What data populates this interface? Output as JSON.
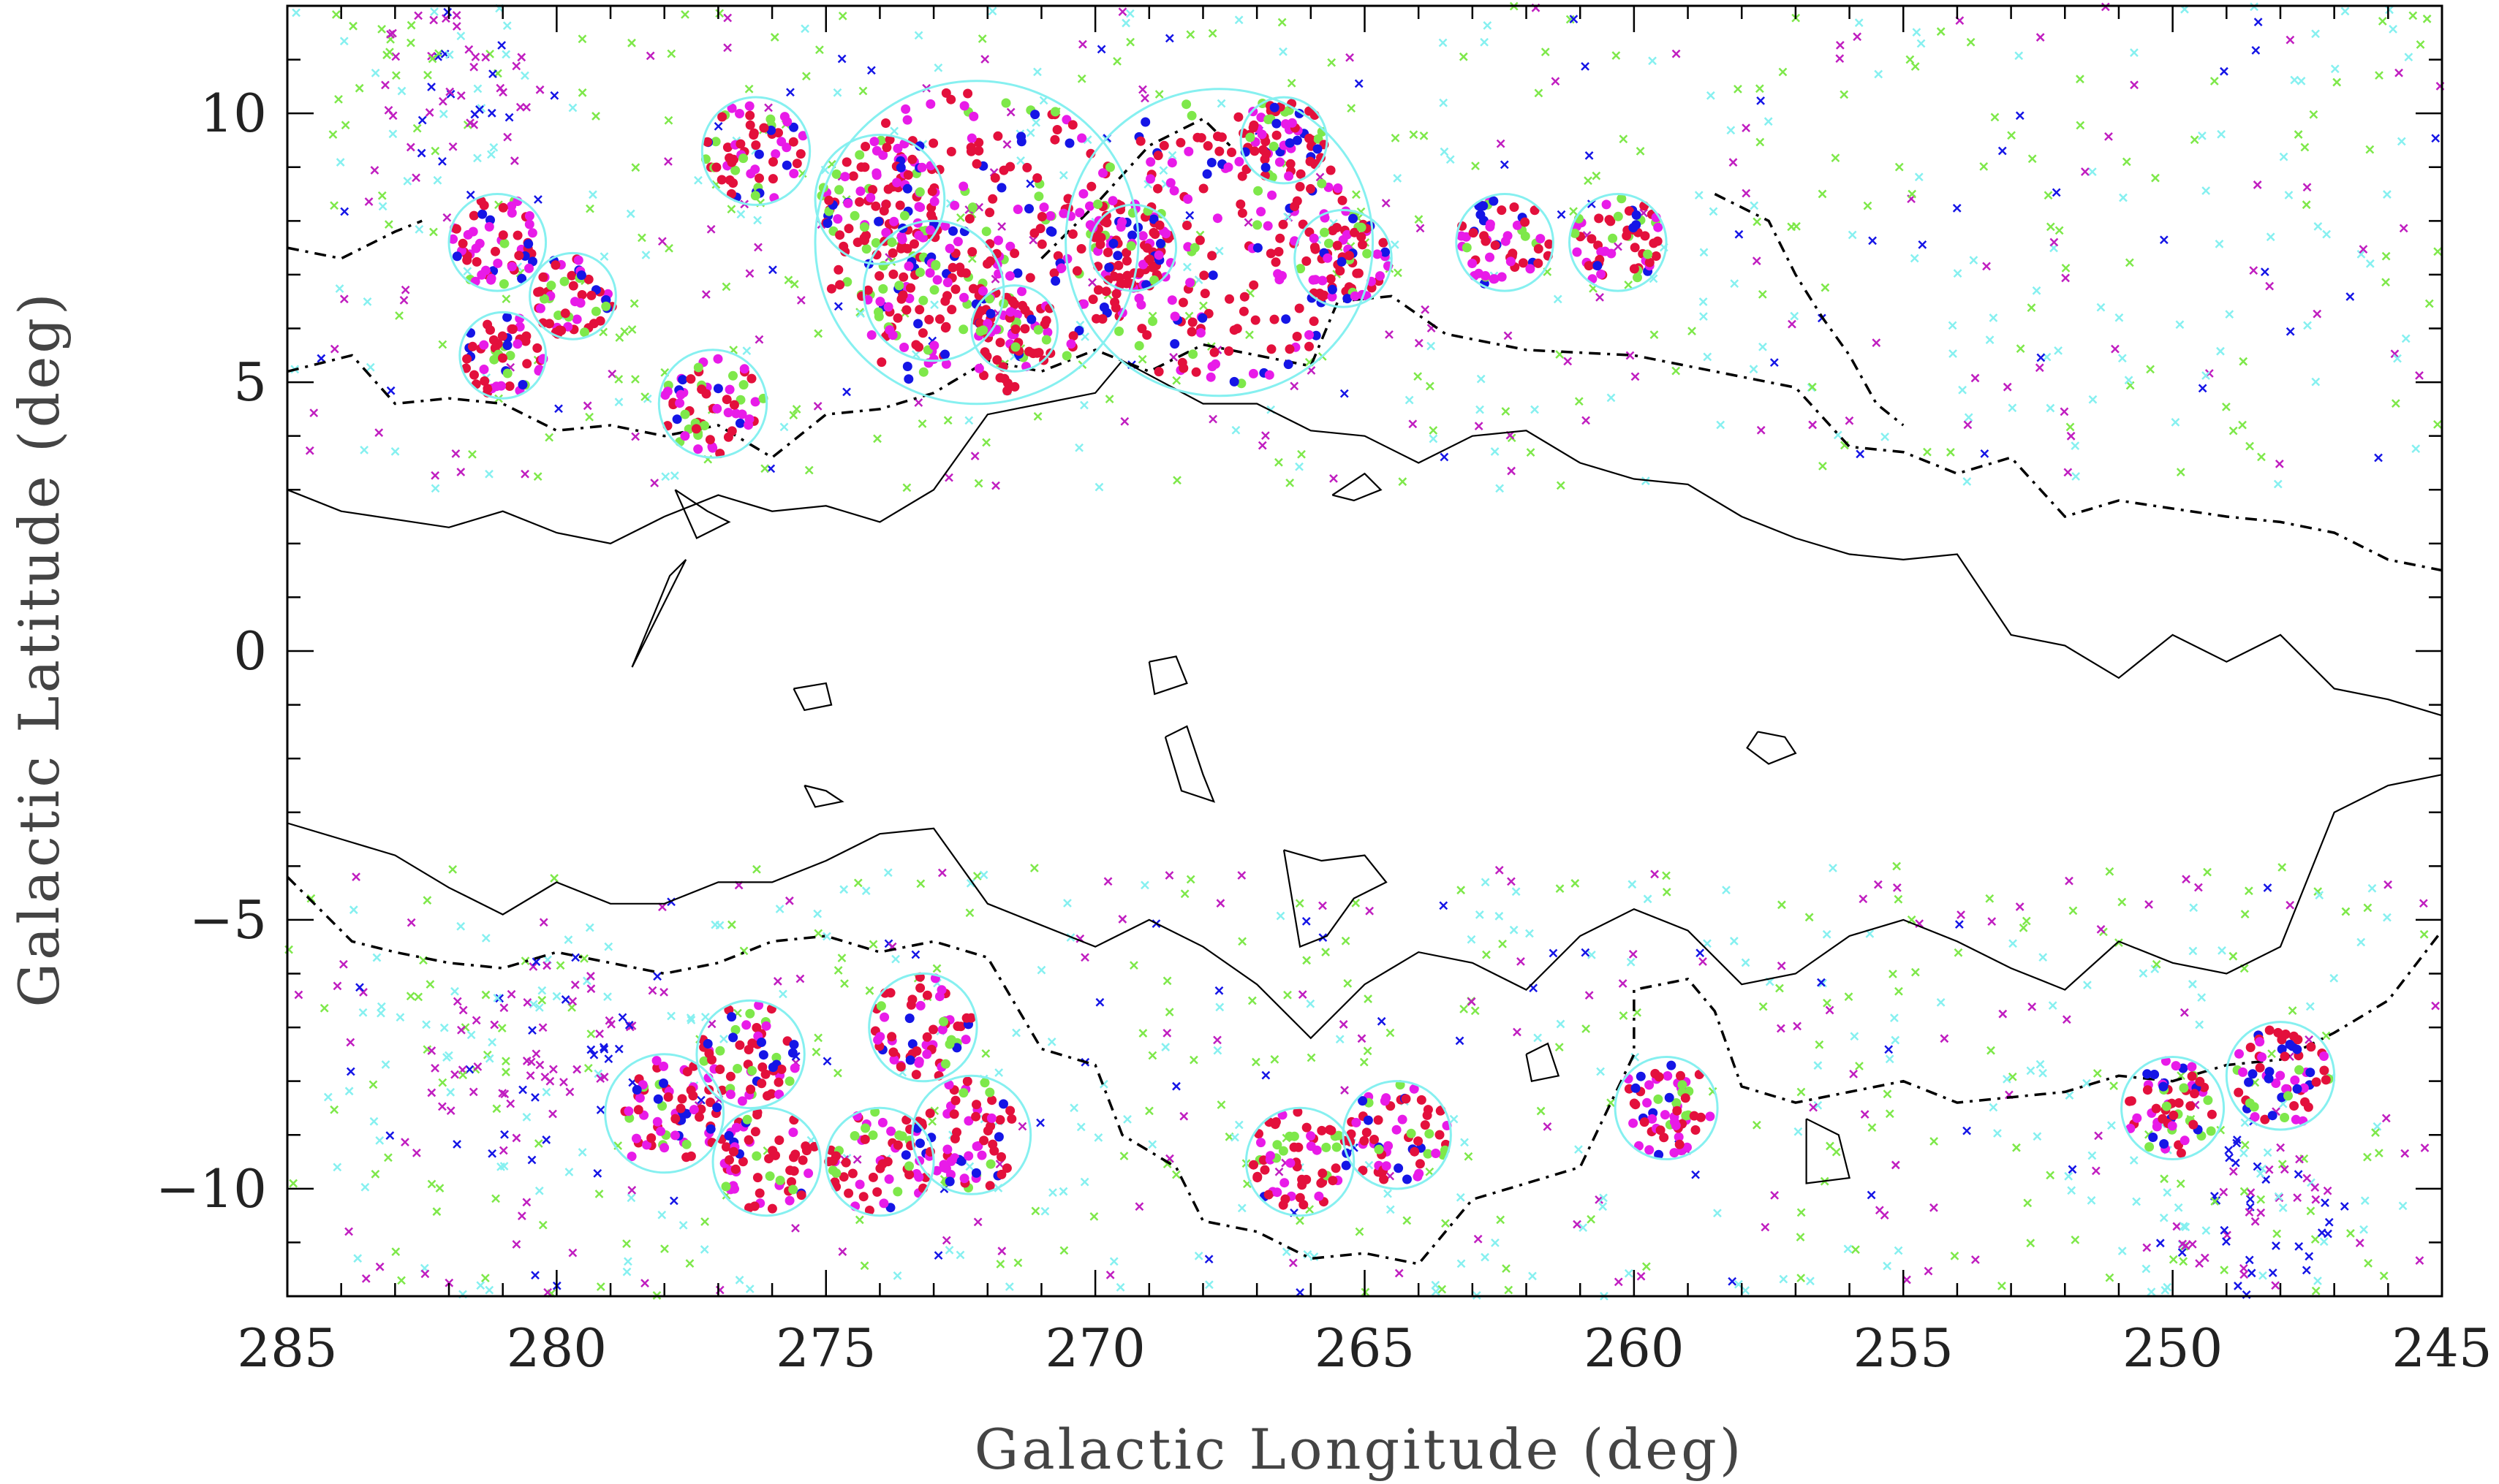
{
  "chart_data": {
    "type": "scatter",
    "xlabel": "Galactic Longitude (deg)",
    "ylabel": "Galactic Latitude (deg)",
    "xlim": [
      285,
      245
    ],
    "ylim": [
      -12,
      12
    ],
    "x_reversed": true,
    "grid": false,
    "legend": "none",
    "x_ticks": [
      "285",
      "280",
      "275",
      "270",
      "265",
      "260",
      "255",
      "250",
      "245"
    ],
    "y_ticks": [
      "10",
      "5",
      "0",
      "−5",
      "−10"
    ],
    "colors": {
      "red": "#e3103c",
      "magenta": "#e81be8",
      "blue": "#1515e6",
      "green": "#7ee84a",
      "cyan": "#86f0f0",
      "field_magenta": "#c01ec0",
      "contour": "#000000",
      "circle": "#86f0f0"
    },
    "clusters": [
      {
        "l": 276.3,
        "b": 9.3,
        "r": 1.0
      },
      {
        "l": 272.2,
        "b": 7.6,
        "r": 3.0
      },
      {
        "l": 267.7,
        "b": 7.6,
        "r": 2.85
      },
      {
        "l": 281.1,
        "b": 7.6,
        "r": 0.9
      },
      {
        "l": 279.7,
        "b": 6.6,
        "r": 0.8
      },
      {
        "l": 281.0,
        "b": 5.5,
        "r": 0.8
      },
      {
        "l": 277.1,
        "b": 4.6,
        "r": 1.0
      },
      {
        "l": 274.0,
        "b": 8.4,
        "r": 1.2
      },
      {
        "l": 273.0,
        "b": 6.7,
        "r": 1.3
      },
      {
        "l": 271.5,
        "b": 6.0,
        "r": 0.8
      },
      {
        "l": 269.3,
        "b": 7.5,
        "r": 0.8
      },
      {
        "l": 266.5,
        "b": 9.5,
        "r": 0.8
      },
      {
        "l": 265.4,
        "b": 7.3,
        "r": 0.9
      },
      {
        "l": 262.4,
        "b": 7.6,
        "r": 0.9
      },
      {
        "l": 260.3,
        "b": 7.6,
        "r": 0.9
      },
      {
        "l": 276.4,
        "b": -7.5,
        "r": 1.0
      },
      {
        "l": 273.2,
        "b": -7.0,
        "r": 1.0
      },
      {
        "l": 278.0,
        "b": -8.6,
        "r": 1.1
      },
      {
        "l": 276.1,
        "b": -9.5,
        "r": 1.0
      },
      {
        "l": 274.0,
        "b": -9.5,
        "r": 1.0
      },
      {
        "l": 272.3,
        "b": -9.0,
        "r": 1.1
      },
      {
        "l": 266.2,
        "b": -9.5,
        "r": 1.0
      },
      {
        "l": 264.4,
        "b": -9.0,
        "r": 1.0
      },
      {
        "l": 259.4,
        "b": -8.5,
        "r": 0.95
      },
      {
        "l": 250.0,
        "b": -8.5,
        "r": 0.95
      },
      {
        "l": 248.0,
        "b": -7.9,
        "r": 1.0
      }
    ],
    "field_groups": [
      {
        "l": 282.0,
        "b": 10.5,
        "r": 1.5,
        "n": 60
      },
      {
        "l": 280.5,
        "b": -7.5,
        "r": 2.0,
        "n": 80
      },
      {
        "l": 248.5,
        "b": -10.5,
        "r": 1.5,
        "n": 60
      }
    ],
    "contours": {
      "outer_north": [
        [
          285,
          5.2
        ],
        [
          283.8,
          5.5
        ],
        [
          283,
          4.6
        ],
        [
          282,
          4.7
        ],
        [
          281,
          4.6
        ],
        [
          280,
          4.1
        ],
        [
          279,
          4.2
        ],
        [
          278,
          4.0
        ],
        [
          277,
          4.2
        ],
        [
          276,
          3.6
        ],
        [
          275,
          4.4
        ],
        [
          274,
          4.5
        ],
        [
          273,
          4.8
        ],
        [
          272,
          5.4
        ],
        [
          271,
          5.2
        ],
        [
          270,
          5.6
        ],
        [
          269,
          5.2
        ],
        [
          268,
          5.7
        ],
        [
          267,
          5.5
        ],
        [
          266,
          5.3
        ],
        [
          265.5,
          6.5
        ],
        [
          264.5,
          6.6
        ],
        [
          263.5,
          5.9
        ],
        [
          262,
          5.6
        ],
        [
          260,
          5.5
        ],
        [
          258,
          5.1
        ],
        [
          257,
          4.9
        ],
        [
          256,
          3.8
        ],
        [
          255,
          3.7
        ],
        [
          254,
          3.3
        ],
        [
          253,
          3.6
        ],
        [
          252,
          2.5
        ],
        [
          251,
          2.8
        ],
        [
          249,
          2.5
        ],
        [
          248,
          2.4
        ],
        [
          247,
          2.2
        ],
        [
          246,
          1.7
        ],
        [
          245,
          1.5
        ]
      ],
      "outer_north_upper": [
        [
          285,
          7.5
        ],
        [
          284,
          7.3
        ],
        [
          283,
          7.8
        ],
        [
          282.5,
          8.0
        ]
      ],
      "outer_north_right": [
        [
          258.5,
          8.5
        ],
        [
          257.5,
          8.0
        ],
        [
          257,
          7.0
        ],
        [
          256.5,
          6.2
        ],
        [
          256,
          5.5
        ],
        [
          255.5,
          4.6
        ],
        [
          255,
          4.2
        ]
      ],
      "outer_north_mid": [
        [
          271,
          7.3
        ],
        [
          270,
          8.3
        ],
        [
          269,
          9.4
        ],
        [
          268,
          9.9
        ],
        [
          267.5,
          9.4
        ]
      ],
      "inner_north": [
        [
          285,
          3.0
        ],
        [
          284,
          2.6
        ],
        [
          282,
          2.3
        ],
        [
          281,
          2.6
        ],
        [
          280,
          2.2
        ],
        [
          279,
          2.0
        ],
        [
          278,
          2.5
        ],
        [
          277,
          2.9
        ],
        [
          276,
          2.6
        ],
        [
          275,
          2.7
        ],
        [
          274,
          2.4
        ],
        [
          273,
          3.0
        ],
        [
          272,
          4.4
        ],
        [
          271,
          4.6
        ],
        [
          270,
          4.8
        ],
        [
          269.5,
          5.4
        ],
        [
          268,
          4.6
        ],
        [
          267,
          4.6
        ],
        [
          266,
          4.1
        ],
        [
          265,
          4.0
        ],
        [
          264,
          3.5
        ],
        [
          263,
          4.0
        ],
        [
          262,
          4.1
        ],
        [
          261,
          3.5
        ],
        [
          260,
          3.2
        ],
        [
          259,
          3.1
        ],
        [
          258,
          2.5
        ],
        [
          257,
          2.1
        ],
        [
          256,
          1.8
        ],
        [
          255,
          1.7
        ],
        [
          254,
          1.8
        ],
        [
          253,
          0.3
        ],
        [
          252,
          0.1
        ],
        [
          251,
          -0.5
        ],
        [
          250,
          0.3
        ],
        [
          249,
          -0.2
        ],
        [
          248,
          0.3
        ],
        [
          247,
          -0.7
        ],
        [
          246,
          -0.9
        ],
        [
          245,
          -1.2
        ]
      ],
      "inner_south": [
        [
          285,
          -3.2
        ],
        [
          284,
          -3.5
        ],
        [
          283,
          -3.8
        ],
        [
          282,
          -4.4
        ],
        [
          281,
          -4.9
        ],
        [
          280,
          -4.3
        ],
        [
          279,
          -4.7
        ],
        [
          278,
          -4.7
        ],
        [
          277,
          -4.3
        ],
        [
          276,
          -4.3
        ],
        [
          275,
          -3.9
        ],
        [
          274,
          -3.4
        ],
        [
          273,
          -3.3
        ],
        [
          272,
          -4.7
        ],
        [
          271,
          -5.1
        ],
        [
          270,
          -5.5
        ],
        [
          269,
          -5.0
        ],
        [
          268,
          -5.5
        ],
        [
          267,
          -6.2
        ],
        [
          266,
          -7.2
        ],
        [
          265,
          -6.2
        ],
        [
          264,
          -5.6
        ],
        [
          263,
          -5.8
        ],
        [
          262,
          -6.3
        ],
        [
          261,
          -5.3
        ],
        [
          260,
          -4.8
        ],
        [
          259,
          -5.2
        ],
        [
          258,
          -6.2
        ],
        [
          257,
          -6.0
        ],
        [
          256,
          -5.3
        ],
        [
          255,
          -5.0
        ],
        [
          254,
          -5.4
        ],
        [
          253,
          -5.9
        ],
        [
          252,
          -6.3
        ],
        [
          251,
          -5.4
        ],
        [
          250,
          -5.8
        ],
        [
          249,
          -6.0
        ],
        [
          248,
          -5.5
        ],
        [
          247,
          -3.0
        ],
        [
          246,
          -2.5
        ],
        [
          245,
          -2.3
        ]
      ],
      "outer_south": [
        [
          285,
          -4.2
        ],
        [
          283.8,
          -5.4
        ],
        [
          283,
          -5.6
        ],
        [
          282,
          -5.8
        ],
        [
          281,
          -5.9
        ],
        [
          280,
          -5.6
        ],
        [
          279,
          -5.8
        ],
        [
          278,
          -6.0
        ],
        [
          277,
          -5.8
        ],
        [
          276,
          -5.4
        ],
        [
          275,
          -5.3
        ],
        [
          274,
          -5.6
        ],
        [
          273,
          -5.4
        ],
        [
          272,
          -5.7
        ],
        [
          271,
          -7.4
        ],
        [
          270,
          -7.7
        ],
        [
          269.5,
          -9.0
        ],
        [
          268.5,
          -9.6
        ],
        [
          268,
          -10.6
        ],
        [
          267,
          -10.8
        ],
        [
          266,
          -11.3
        ],
        [
          265,
          -11.2
        ],
        [
          264,
          -11.4
        ],
        [
          263,
          -10.2
        ],
        [
          262,
          -9.9
        ],
        [
          261,
          -9.6
        ],
        [
          260,
          -7.5
        ],
        [
          260,
          -6.3
        ],
        [
          259,
          -6.1
        ],
        [
          258.5,
          -6.7
        ],
        [
          258,
          -8.1
        ],
        [
          257,
          -8.4
        ],
        [
          256,
          -8.2
        ],
        [
          255,
          -8.0
        ],
        [
          254,
          -8.4
        ],
        [
          253,
          -8.3
        ],
        [
          252,
          -8.2
        ],
        [
          251,
          -7.9
        ],
        [
          250,
          -8.0
        ],
        [
          249,
          -7.7
        ],
        [
          248,
          -7.6
        ],
        [
          247,
          -7.1
        ],
        [
          246,
          -6.5
        ],
        [
          245,
          -5.2
        ]
      ],
      "islands": [
        [
          [
            269,
            -0.2
          ],
          [
            268.5,
            -0.1
          ],
          [
            268.3,
            -0.6
          ],
          [
            268.9,
            -0.8
          ],
          [
            269,
            -0.2
          ]
        ],
        [
          [
            275.6,
            -0.7
          ],
          [
            275,
            -0.6
          ],
          [
            274.9,
            -1.0
          ],
          [
            275.4,
            -1.1
          ],
          [
            275.6,
            -0.7
          ]
        ],
        [
          [
            268.7,
            -1.6
          ],
          [
            268.3,
            -1.4
          ],
          [
            268,
            -2.3
          ],
          [
            267.8,
            -2.8
          ],
          [
            268.4,
            -2.6
          ],
          [
            268.7,
            -1.6
          ]
        ],
        [
          [
            275.4,
            -2.5
          ],
          [
            275,
            -2.6
          ],
          [
            274.7,
            -2.8
          ],
          [
            275.2,
            -2.9
          ],
          [
            275.4,
            -2.5
          ]
        ],
        [
          [
            257.7,
            -1.5
          ],
          [
            257.2,
            -1.6
          ],
          [
            257,
            -1.9
          ],
          [
            257.5,
            -2.1
          ],
          [
            257.9,
            -1.8
          ],
          [
            257.7,
            -1.5
          ]
        ],
        [
          [
            266.5,
            -3.7
          ],
          [
            265.8,
            -3.9
          ],
          [
            265,
            -3.8
          ],
          [
            264.6,
            -4.3
          ],
          [
            265.2,
            -4.6
          ],
          [
            265.7,
            -5.3
          ],
          [
            266.2,
            -5.5
          ],
          [
            266.5,
            -3.7
          ]
        ],
        [
          [
            262,
            -7.5
          ],
          [
            261.6,
            -7.3
          ],
          [
            261.4,
            -7.9
          ],
          [
            261.9,
            -8.0
          ],
          [
            262,
            -7.5
          ]
        ],
        [
          [
            256.8,
            -8.7
          ],
          [
            256.2,
            -9.0
          ],
          [
            256,
            -9.8
          ],
          [
            256.8,
            -9.9
          ],
          [
            256.8,
            -8.7
          ]
        ],
        [
          [
            278.6,
            -0.3
          ],
          [
            277.6,
            1.7
          ],
          [
            277.9,
            1.4
          ],
          [
            278.6,
            -0.3
          ]
        ],
        [
          [
            277.8,
            3.0
          ],
          [
            277.2,
            2.6
          ],
          [
            276.8,
            2.4
          ],
          [
            277.4,
            2.1
          ],
          [
            277.8,
            3.0
          ]
        ],
        [
          [
            265.6,
            2.9
          ],
          [
            265.0,
            3.3
          ],
          [
            264.7,
            3.0
          ],
          [
            265.2,
            2.8
          ],
          [
            265.6,
            2.9
          ]
        ]
      ]
    }
  }
}
